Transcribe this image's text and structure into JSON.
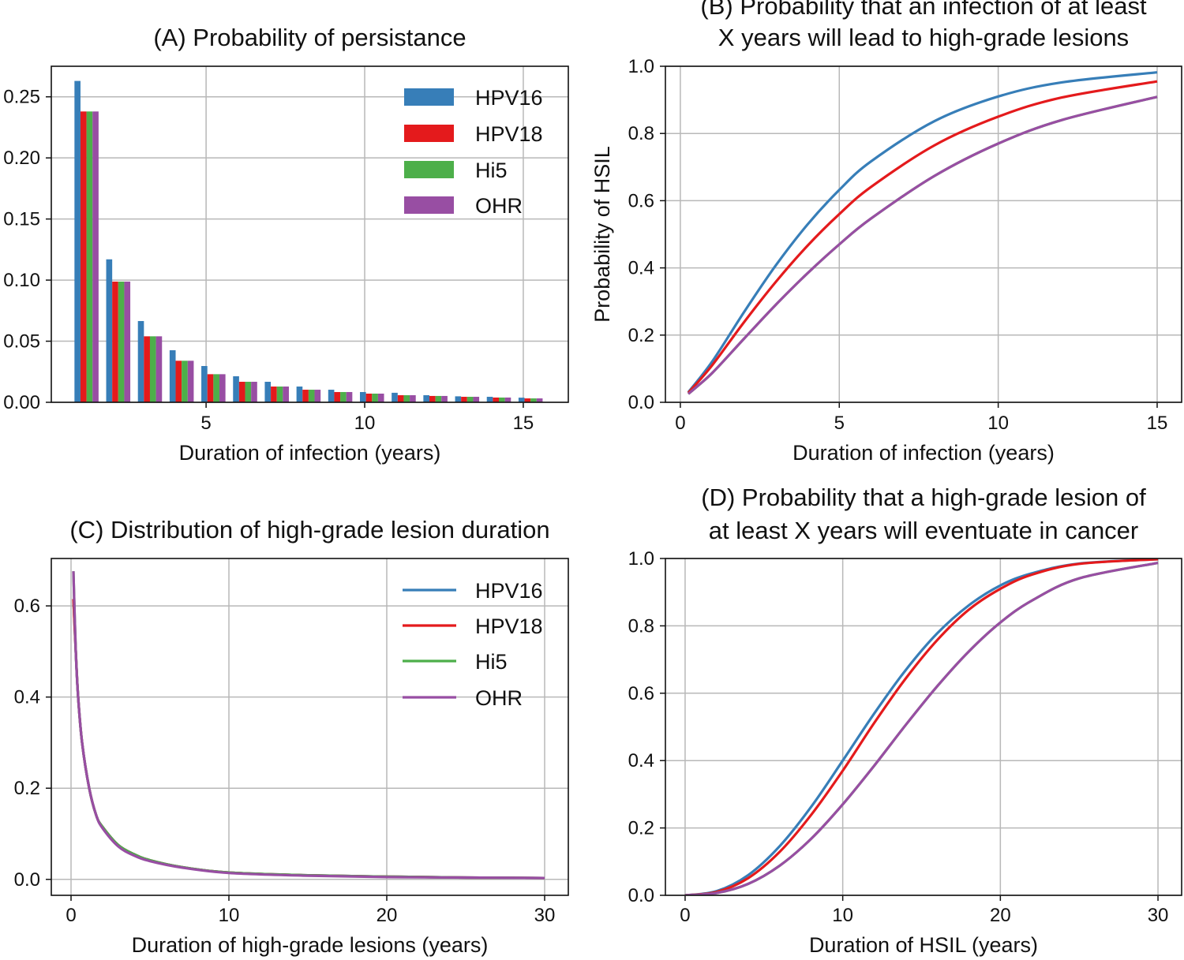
{
  "colors": {
    "HPV16": "#377eb8",
    "HPV18": "#e41a1c",
    "Hi5": "#4daf4a",
    "OHR": "#984ea3"
  },
  "chart_data": [
    {
      "id": "A",
      "type": "bar",
      "title": [
        "(A) Probability of persistance"
      ],
      "xlabel": "Duration of infection (years)",
      "ylabel": "",
      "xlim": [
        0.12,
        16.42
      ],
      "ylim": [
        0,
        0.275
      ],
      "xticks": [
        5,
        10,
        15
      ],
      "xtick_labels": [
        "5",
        "10",
        "15"
      ],
      "yticks": [
        0,
        0.05,
        0.1,
        0.15,
        0.2,
        0.25
      ],
      "ytick_labels": [
        "0.00",
        "0.05",
        "0.10",
        "0.15",
        "0.20",
        "0.25"
      ],
      "grid": true,
      "legend": {
        "placement": "top-right",
        "style": "patch"
      },
      "categories": [
        1,
        2,
        3,
        4,
        5,
        6,
        7,
        8,
        9,
        10,
        11,
        12,
        13,
        14,
        15
      ],
      "series": [
        {
          "name": "HPV16",
          "values": [
            0.263,
            0.117,
            0.0665,
            0.0426,
            0.0297,
            0.0213,
            0.0168,
            0.0129,
            0.0103,
            0.0084,
            0.0078,
            0.0058,
            0.0049,
            0.0045,
            0.0038
          ]
        },
        {
          "name": "HPV18",
          "values": [
            0.238,
            0.0988,
            0.054,
            0.034,
            0.023,
            0.0168,
            0.0129,
            0.0103,
            0.0084,
            0.0071,
            0.0058,
            0.0052,
            0.0045,
            0.0039,
            0.0032
          ]
        },
        {
          "name": "Hi5",
          "values": [
            0.238,
            0.0988,
            0.054,
            0.034,
            0.023,
            0.0168,
            0.0129,
            0.0103,
            0.0084,
            0.0071,
            0.0058,
            0.0052,
            0.0045,
            0.0039,
            0.0032
          ]
        },
        {
          "name": "OHR",
          "values": [
            0.238,
            0.0988,
            0.054,
            0.034,
            0.023,
            0.0168,
            0.0129,
            0.0103,
            0.0084,
            0.0071,
            0.0058,
            0.0052,
            0.0045,
            0.0039,
            0.0032
          ]
        }
      ]
    },
    {
      "id": "B",
      "type": "line",
      "title": [
        "(B) Probability that an infection of at least",
        "X years will lead to high-grade lesions"
      ],
      "xlabel": "Duration of infection (years)",
      "ylabel": "Probability of HSIL",
      "xlim": [
        -0.47,
        15.77
      ],
      "ylim": [
        0,
        1
      ],
      "xticks": [
        0,
        5,
        10,
        15
      ],
      "xtick_labels": [
        "0",
        "5",
        "10",
        "15"
      ],
      "yticks": [
        0,
        0.2,
        0.4,
        0.6,
        0.8,
        1.0
      ],
      "ytick_labels": [
        "0.0",
        "0.2",
        "0.4",
        "0.6",
        "0.8",
        "1.0"
      ],
      "grid": true,
      "x": [
        0.25,
        1,
        2,
        3,
        4,
        5,
        6,
        8,
        10,
        12,
        15
      ],
      "series": [
        {
          "name": "HPV16",
          "values": [
            0.03,
            0.121,
            0.268,
            0.407,
            0.529,
            0.632,
            0.717,
            0.837,
            0.91,
            0.952,
            0.982
          ]
        },
        {
          "name": "HPV18",
          "values": [
            0.028,
            0.11,
            0.238,
            0.358,
            0.466,
            0.56,
            0.641,
            0.765,
            0.85,
            0.907,
            0.955
          ]
        },
        {
          "name": "Hi5",
          "values": [
            0.025,
            0.087,
            0.189,
            0.29,
            0.384,
            0.47,
            0.547,
            0.674,
            0.77,
            0.84,
            0.909
          ]
        },
        {
          "name": "OHR",
          "values": [
            0.025,
            0.087,
            0.189,
            0.29,
            0.384,
            0.47,
            0.547,
            0.674,
            0.77,
            0.84,
            0.909
          ]
        }
      ]
    },
    {
      "id": "C",
      "type": "line",
      "title": [
        "(C) Distribution of high-grade lesion duration"
      ],
      "xlabel": "Duration of high-grade lesions (years)",
      "ylabel": "",
      "xlim": [
        -1.25,
        31.5
      ],
      "ylim": [
        -0.035,
        0.704
      ],
      "xticks": [
        0,
        10,
        20,
        30
      ],
      "xtick_labels": [
        "0",
        "10",
        "20",
        "30"
      ],
      "yticks": [
        0,
        0.2,
        0.4,
        0.6
      ],
      "ytick_labels": [
        "0.0",
        "0.2",
        "0.4",
        "0.6"
      ],
      "grid": true,
      "legend": {
        "placement": "top-right",
        "style": "line"
      },
      "x": [
        0.15,
        0.3,
        0.45,
        0.7,
        1.15,
        1.6,
        2,
        3,
        4,
        5,
        7,
        10,
        15,
        20,
        25,
        30
      ],
      "series": [
        {
          "name": "HPV16",
          "values": [
            0.615,
            0.5,
            0.4,
            0.3,
            0.2,
            0.14,
            0.115,
            0.075,
            0.055,
            0.042,
            0.027,
            0.015,
            0.009,
            0.006,
            0.004,
            0.003
          ]
        },
        {
          "name": "HPV18",
          "values": [
            0.615,
            0.5,
            0.4,
            0.3,
            0.2,
            0.14,
            0.115,
            0.075,
            0.055,
            0.042,
            0.027,
            0.015,
            0.009,
            0.006,
            0.004,
            0.003
          ]
        },
        {
          "name": "Hi5",
          "values": [
            0.676,
            0.5,
            0.4,
            0.3,
            0.2,
            0.14,
            0.115,
            0.075,
            0.055,
            0.042,
            0.027,
            0.015,
            0.009,
            0.006,
            0.004,
            0.003
          ]
        },
        {
          "name": "OHR",
          "values": [
            0.676,
            0.5,
            0.4,
            0.3,
            0.2,
            0.14,
            0.112,
            0.072,
            0.052,
            0.04,
            0.026,
            0.014,
            0.008,
            0.005,
            0.004,
            0.003
          ]
        }
      ]
    },
    {
      "id": "D",
      "type": "line",
      "title": [
        "(D) Probability that a high-grade lesion of",
        "at least X years will eventuate in cancer"
      ],
      "xlabel": "Duration of HSIL (years)",
      "ylabel": "",
      "xlim": [
        -1.25,
        31.5
      ],
      "ylim": [
        0,
        1
      ],
      "xticks": [
        0,
        10,
        20,
        30
      ],
      "xtick_labels": [
        "0",
        "10",
        "20",
        "30"
      ],
      "yticks": [
        0,
        0.2,
        0.4,
        0.6,
        0.8,
        1.0
      ],
      "ytick_labels": [
        "0.0",
        "0.2",
        "0.4",
        "0.6",
        "0.8",
        "1.0"
      ],
      "grid": true,
      "x": [
        0,
        2,
        4,
        6,
        8,
        10,
        12,
        14,
        16,
        18,
        20,
        22,
        25,
        30
      ],
      "series": [
        {
          "name": "HPV16",
          "values": [
            0,
            0.0125,
            0.06,
            0.146,
            0.263,
            0.4,
            0.54,
            0.669,
            0.778,
            0.861,
            0.92,
            0.956,
            0.985,
            0.998
          ]
        },
        {
          "name": "HPV18",
          "values": [
            0,
            0.01,
            0.051,
            0.129,
            0.239,
            0.37,
            0.512,
            0.644,
            0.758,
            0.848,
            0.91,
            0.952,
            0.984,
            0.998
          ]
        },
        {
          "name": "Hi5",
          "values": [
            0,
            0.007,
            0.034,
            0.088,
            0.168,
            0.27,
            0.385,
            0.506,
            0.621,
            0.724,
            0.81,
            0.875,
            0.941,
            0.987
          ]
        },
        {
          "name": "OHR",
          "values": [
            0,
            0.007,
            0.034,
            0.088,
            0.168,
            0.27,
            0.385,
            0.506,
            0.621,
            0.724,
            0.81,
            0.875,
            0.941,
            0.987
          ]
        }
      ]
    }
  ]
}
